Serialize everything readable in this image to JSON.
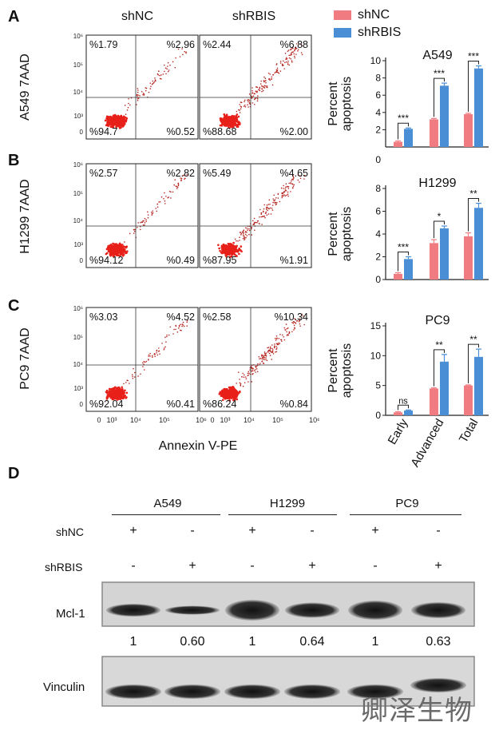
{
  "panels": {
    "a": "A",
    "b": "B",
    "c": "C",
    "d": "D"
  },
  "flow": {
    "col_left": "shNC",
    "col_right": "shRBIS",
    "x_axis_label": "Annexin V-PE",
    "x_ticks": [
      "0",
      "10³",
      "10⁴",
      "10⁵",
      "10⁶"
    ],
    "y_ticks": [
      "10⁶",
      "10⁵",
      "10⁴",
      "10³",
      "0"
    ],
    "rows": [
      {
        "ylabel": "A549 7AAD",
        "left": {
          "ul": "%1.79",
          "ur": "%2.96",
          "ll": "%94.7",
          "lr": "%0.52"
        },
        "right": {
          "ul": "%2.44",
          "ur": "%6.88",
          "ll": "%88.68",
          "lr": "%2.00"
        }
      },
      {
        "ylabel": "H1299 7AAD",
        "left": {
          "ul": "%2.57",
          "ur": "%2.82",
          "ll": "%94.12",
          "lr": "%0.49"
        },
        "right": {
          "ul": "%5.49",
          "ur": "%4.65",
          "ll": "%87.95",
          "lr": "%1.91"
        }
      },
      {
        "ylabel": "PC9 7AAD",
        "left": {
          "ul": "%3.03",
          "ur": "%4.52",
          "ll": "%92.04",
          "lr": "%0.41"
        },
        "right": {
          "ul": "%2.58",
          "ur": "%10.34",
          "ll": "%86.24",
          "lr": "%0.84"
        }
      }
    ]
  },
  "legend": {
    "items": [
      {
        "label": "shNC",
        "color": "#f07b80"
      },
      {
        "label": "shRBIS",
        "color": "#4a8fd6"
      }
    ]
  },
  "chart_data": [
    {
      "type": "bar",
      "title": "A549",
      "ylabel": "Percent apoptosis",
      "categories": [
        "Early",
        "Advanced",
        "Total"
      ],
      "series": [
        {
          "name": "shNC",
          "values": [
            0.6,
            3.2,
            3.8
          ],
          "errors": [
            0.1,
            0.1,
            0.1
          ]
        },
        {
          "name": "shRBIS",
          "values": [
            2.1,
            7.1,
            9.1
          ],
          "errors": [
            0.1,
            0.3,
            0.3
          ]
        }
      ],
      "ylim": [
        0,
        10
      ],
      "yticks": [
        "2",
        "4",
        "6",
        "8",
        "10"
      ],
      "y_zero_label": "0",
      "significance": [
        "***",
        "***",
        "***"
      ]
    },
    {
      "type": "bar",
      "title": "H1299",
      "ylabel": "Percent apoptosis",
      "categories": [
        "Early",
        "Advanced",
        "Total"
      ],
      "series": [
        {
          "name": "shNC",
          "values": [
            0.5,
            3.2,
            3.8
          ],
          "errors": [
            0.1,
            0.3,
            0.3
          ]
        },
        {
          "name": "shRBIS",
          "values": [
            1.8,
            4.5,
            6.3
          ],
          "errors": [
            0.2,
            0.2,
            0.4
          ]
        }
      ],
      "ylim": [
        0,
        8
      ],
      "yticks": [
        "0",
        "2",
        "4",
        "6",
        "8"
      ],
      "significance": [
        "***",
        "*",
        "**"
      ]
    },
    {
      "type": "bar",
      "title": "PC9",
      "ylabel": "Percent apoptosis",
      "categories": [
        "Early",
        "Advanced",
        "Total"
      ],
      "series": [
        {
          "name": "shNC",
          "values": [
            0.5,
            4.5,
            5.0
          ],
          "errors": [
            0.1,
            0.1,
            0.1
          ]
        },
        {
          "name": "shRBIS",
          "values": [
            0.8,
            9.0,
            9.8
          ],
          "errors": [
            0.1,
            1.2,
            1.3
          ]
        }
      ],
      "ylim": [
        0,
        15
      ],
      "yticks": [
        "0",
        "5",
        "10",
        "15"
      ],
      "significance": [
        "ns",
        "**",
        "**"
      ]
    }
  ],
  "western": {
    "groups": [
      "A549",
      "H1299",
      "PC9"
    ],
    "row_shnc_label": "shNC",
    "row_shrbis_label": "shRBIS",
    "shnc": [
      "+",
      "-",
      "+",
      "-",
      "+",
      "-"
    ],
    "shrbis": [
      "-",
      "+",
      "-",
      "+",
      "-",
      "+"
    ],
    "blot1_label": "Mcl-1",
    "blot2_label": "Vinculin",
    "quant": [
      "1",
      "0.60",
      "1",
      "0.64",
      "1",
      "0.63"
    ]
  },
  "watermark": "卿泽生物"
}
